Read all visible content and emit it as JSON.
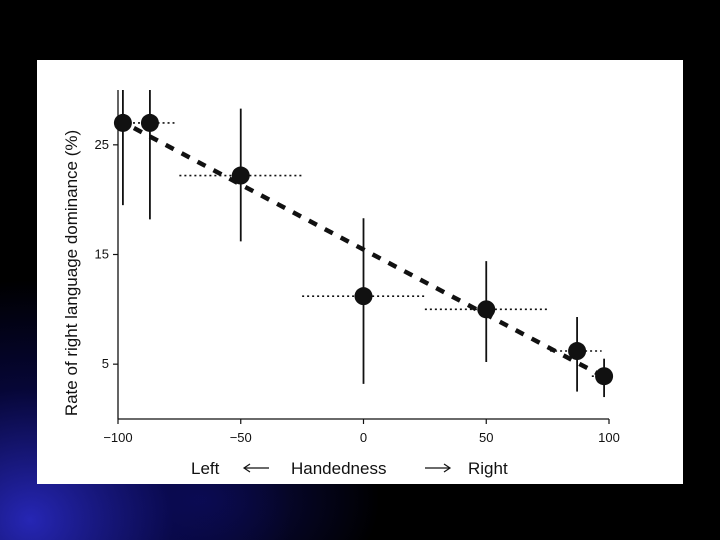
{
  "chart_data": {
    "type": "scatter",
    "title": "",
    "ylabel": "Rate of right language dominance (%)",
    "xlabel": {
      "left": "Left",
      "center": "Handedness",
      "right": "Right"
    },
    "xlim": [
      -100,
      100
    ],
    "ylim": [
      0,
      30
    ],
    "xticks": [
      "−100",
      "−50",
      "0",
      "50",
      "100"
    ],
    "xtick_values": [
      -100,
      -50,
      0,
      50,
      100
    ],
    "yticks": [
      "5",
      "15",
      "25"
    ],
    "ytick_values": [
      5,
      15,
      25
    ],
    "grid": false,
    "points": [
      {
        "x": -98,
        "y": 27.0,
        "err_low": 19.5,
        "err_high": 30.0,
        "x_low": -100,
        "x_high": -90
      },
      {
        "x": -87,
        "y": 27.0,
        "err_low": 18.2,
        "err_high": 30.0,
        "x_low": -90,
        "x_high": -77
      },
      {
        "x": -50,
        "y": 22.2,
        "err_low": 16.2,
        "err_high": 28.3,
        "x_low": -75,
        "x_high": -25
      },
      {
        "x": 0,
        "y": 11.2,
        "err_low": 3.2,
        "err_high": 18.3,
        "x_low": -25,
        "x_high": 25
      },
      {
        "x": 50,
        "y": 10.0,
        "err_low": 5.2,
        "err_high": 14.4,
        "x_low": 25,
        "x_high": 75
      },
      {
        "x": 87,
        "y": 6.2,
        "err_low": 2.5,
        "err_high": 9.3,
        "x_low": 76,
        "x_high": 97
      },
      {
        "x": 98,
        "y": 3.9,
        "err_low": 2.0,
        "err_high": 5.5,
        "x_low": 93,
        "x_high": 100
      }
    ],
    "trend": {
      "x": [
        -100,
        100
      ],
      "y": [
        27.3,
        3.6
      ]
    },
    "colors": {
      "marks": "#111111",
      "panel": "#ffffff",
      "background": "#000000"
    }
  }
}
